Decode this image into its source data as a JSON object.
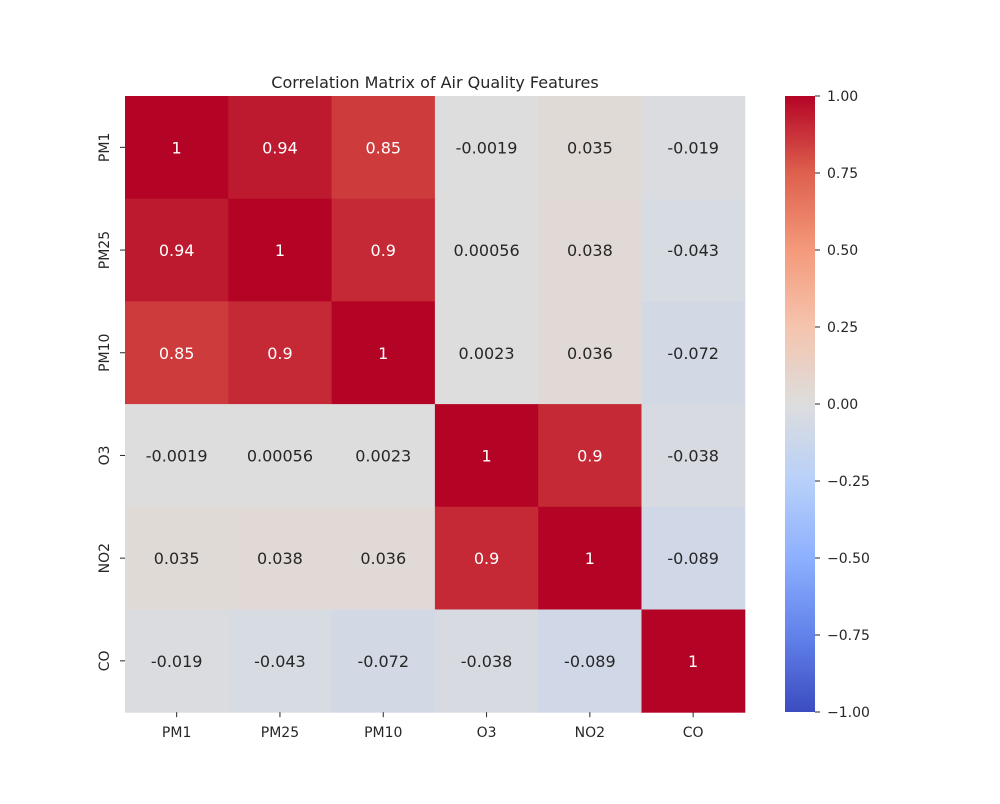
{
  "chart_data": {
    "type": "heatmap",
    "title": "Correlation Matrix of Air Quality Features",
    "x_categories": [
      "PM1",
      "PM25",
      "PM10",
      "O3",
      "NO2",
      "CO"
    ],
    "y_categories": [
      "PM1",
      "PM25",
      "PM10",
      "O3",
      "NO2",
      "CO"
    ],
    "values": [
      [
        1,
        0.94,
        0.85,
        -0.0019,
        0.035,
        -0.019
      ],
      [
        0.94,
        1,
        0.9,
        0.00056,
        0.038,
        -0.043
      ],
      [
        0.85,
        0.9,
        1,
        0.0023,
        0.036,
        -0.072
      ],
      [
        -0.0019,
        0.00056,
        0.0023,
        1,
        0.9,
        -0.038
      ],
      [
        0.035,
        0.038,
        0.036,
        0.9,
        1,
        -0.089
      ],
      [
        -0.019,
        -0.043,
        -0.072,
        -0.038,
        -0.089,
        1
      ]
    ],
    "cell_labels": [
      [
        "1",
        "0.94",
        "0.85",
        "-0.0019",
        "0.035",
        "-0.019"
      ],
      [
        "0.94",
        "1",
        "0.9",
        "0.00056",
        "0.038",
        "-0.043"
      ],
      [
        "0.85",
        "0.9",
        "1",
        "0.0023",
        "0.036",
        "-0.072"
      ],
      [
        "-0.0019",
        "0.00056",
        "0.0023",
        "1",
        "0.9",
        "-0.038"
      ],
      [
        "0.035",
        "0.038",
        "0.036",
        "0.9",
        "1",
        "-0.089"
      ],
      [
        "-0.019",
        "-0.043",
        "-0.072",
        "-0.038",
        "-0.089",
        "1"
      ]
    ],
    "colormap": "coolwarm",
    "colorbar_range": [
      -1.0,
      1.0
    ],
    "colorbar_ticks": [
      1.0,
      0.75,
      0.5,
      0.25,
      0.0,
      -0.25,
      -0.5,
      -0.75,
      -1.0
    ],
    "colorbar_tick_labels": [
      "1.00",
      "0.75",
      "0.50",
      "0.25",
      "0.00",
      "−0.25",
      "−0.50",
      "−0.75",
      "−1.00"
    ],
    "xlabel": "",
    "ylabel": "",
    "grid": false
  }
}
